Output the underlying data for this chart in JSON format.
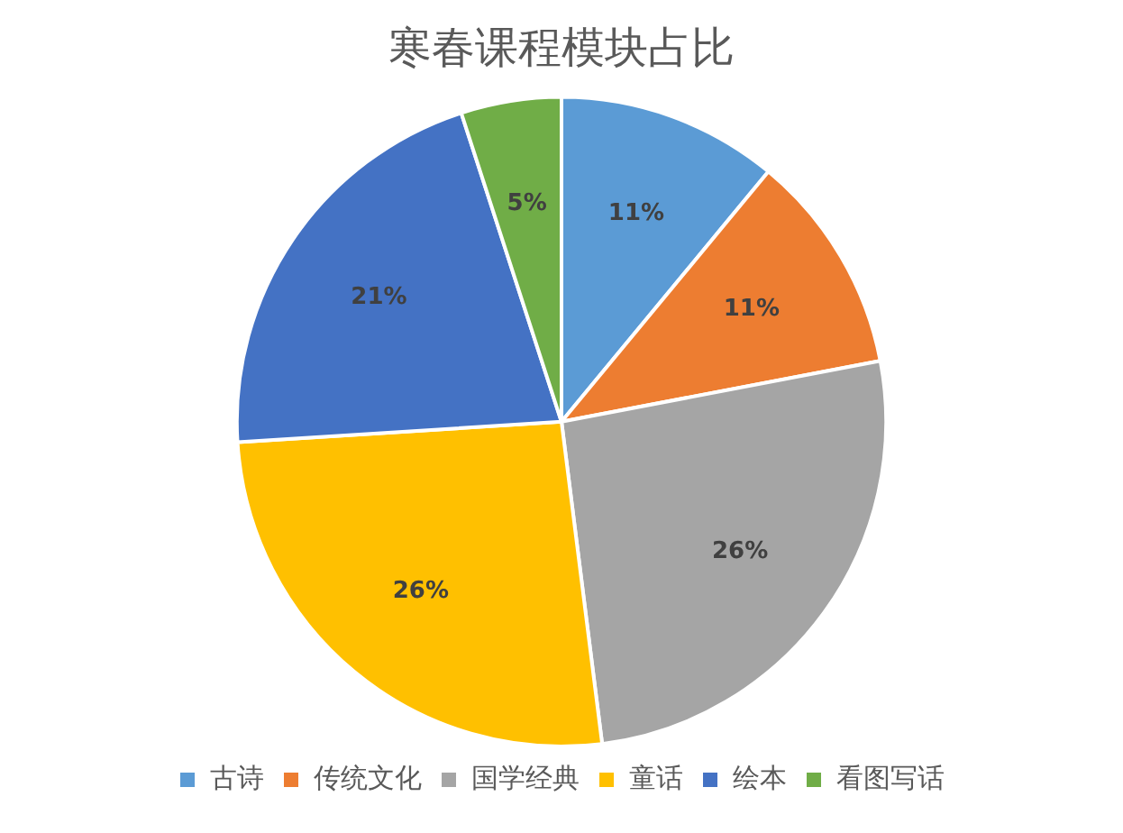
{
  "chart_data": {
    "type": "pie",
    "title": "寒春课程模块占比",
    "categories": [
      "古诗",
      "传统文化",
      "国学经典",
      "童话",
      "绘本",
      "看图写话"
    ],
    "values": [
      11,
      11,
      26,
      26,
      21,
      5
    ],
    "colors": [
      "#5b9bd5",
      "#ed7d31",
      "#a5a5a5",
      "#ffc000",
      "#4472c4",
      "#70ad47"
    ],
    "value_labels": [
      "11%",
      "11%",
      "26%",
      "26%",
      "21%",
      "5%"
    ],
    "legend": "bottom"
  }
}
